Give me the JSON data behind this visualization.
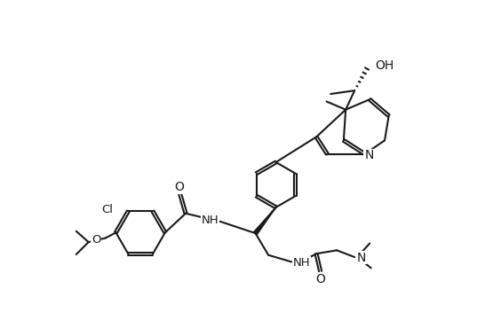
{
  "bg": "#ffffff",
  "lc": "#1a1a1a",
  "lw": 1.5,
  "fs": 9.0,
  "figsize": [
    5.46,
    3.7
  ],
  "dpi": 100,
  "atoms": {
    "OH_label": "OH",
    "N_label": "N",
    "NH_label": "NH",
    "Cl_label": "Cl",
    "O_label": "O"
  }
}
